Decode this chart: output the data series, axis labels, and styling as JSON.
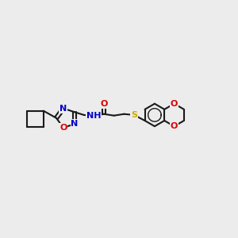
{
  "bg_color": "#ececec",
  "bond_color": "#1a1a1a",
  "bond_width": 1.5,
  "atom_colors": {
    "N": "#0000cc",
    "O": "#dd0000",
    "S": "#ccaa00",
    "C": "#1a1a1a"
  }
}
